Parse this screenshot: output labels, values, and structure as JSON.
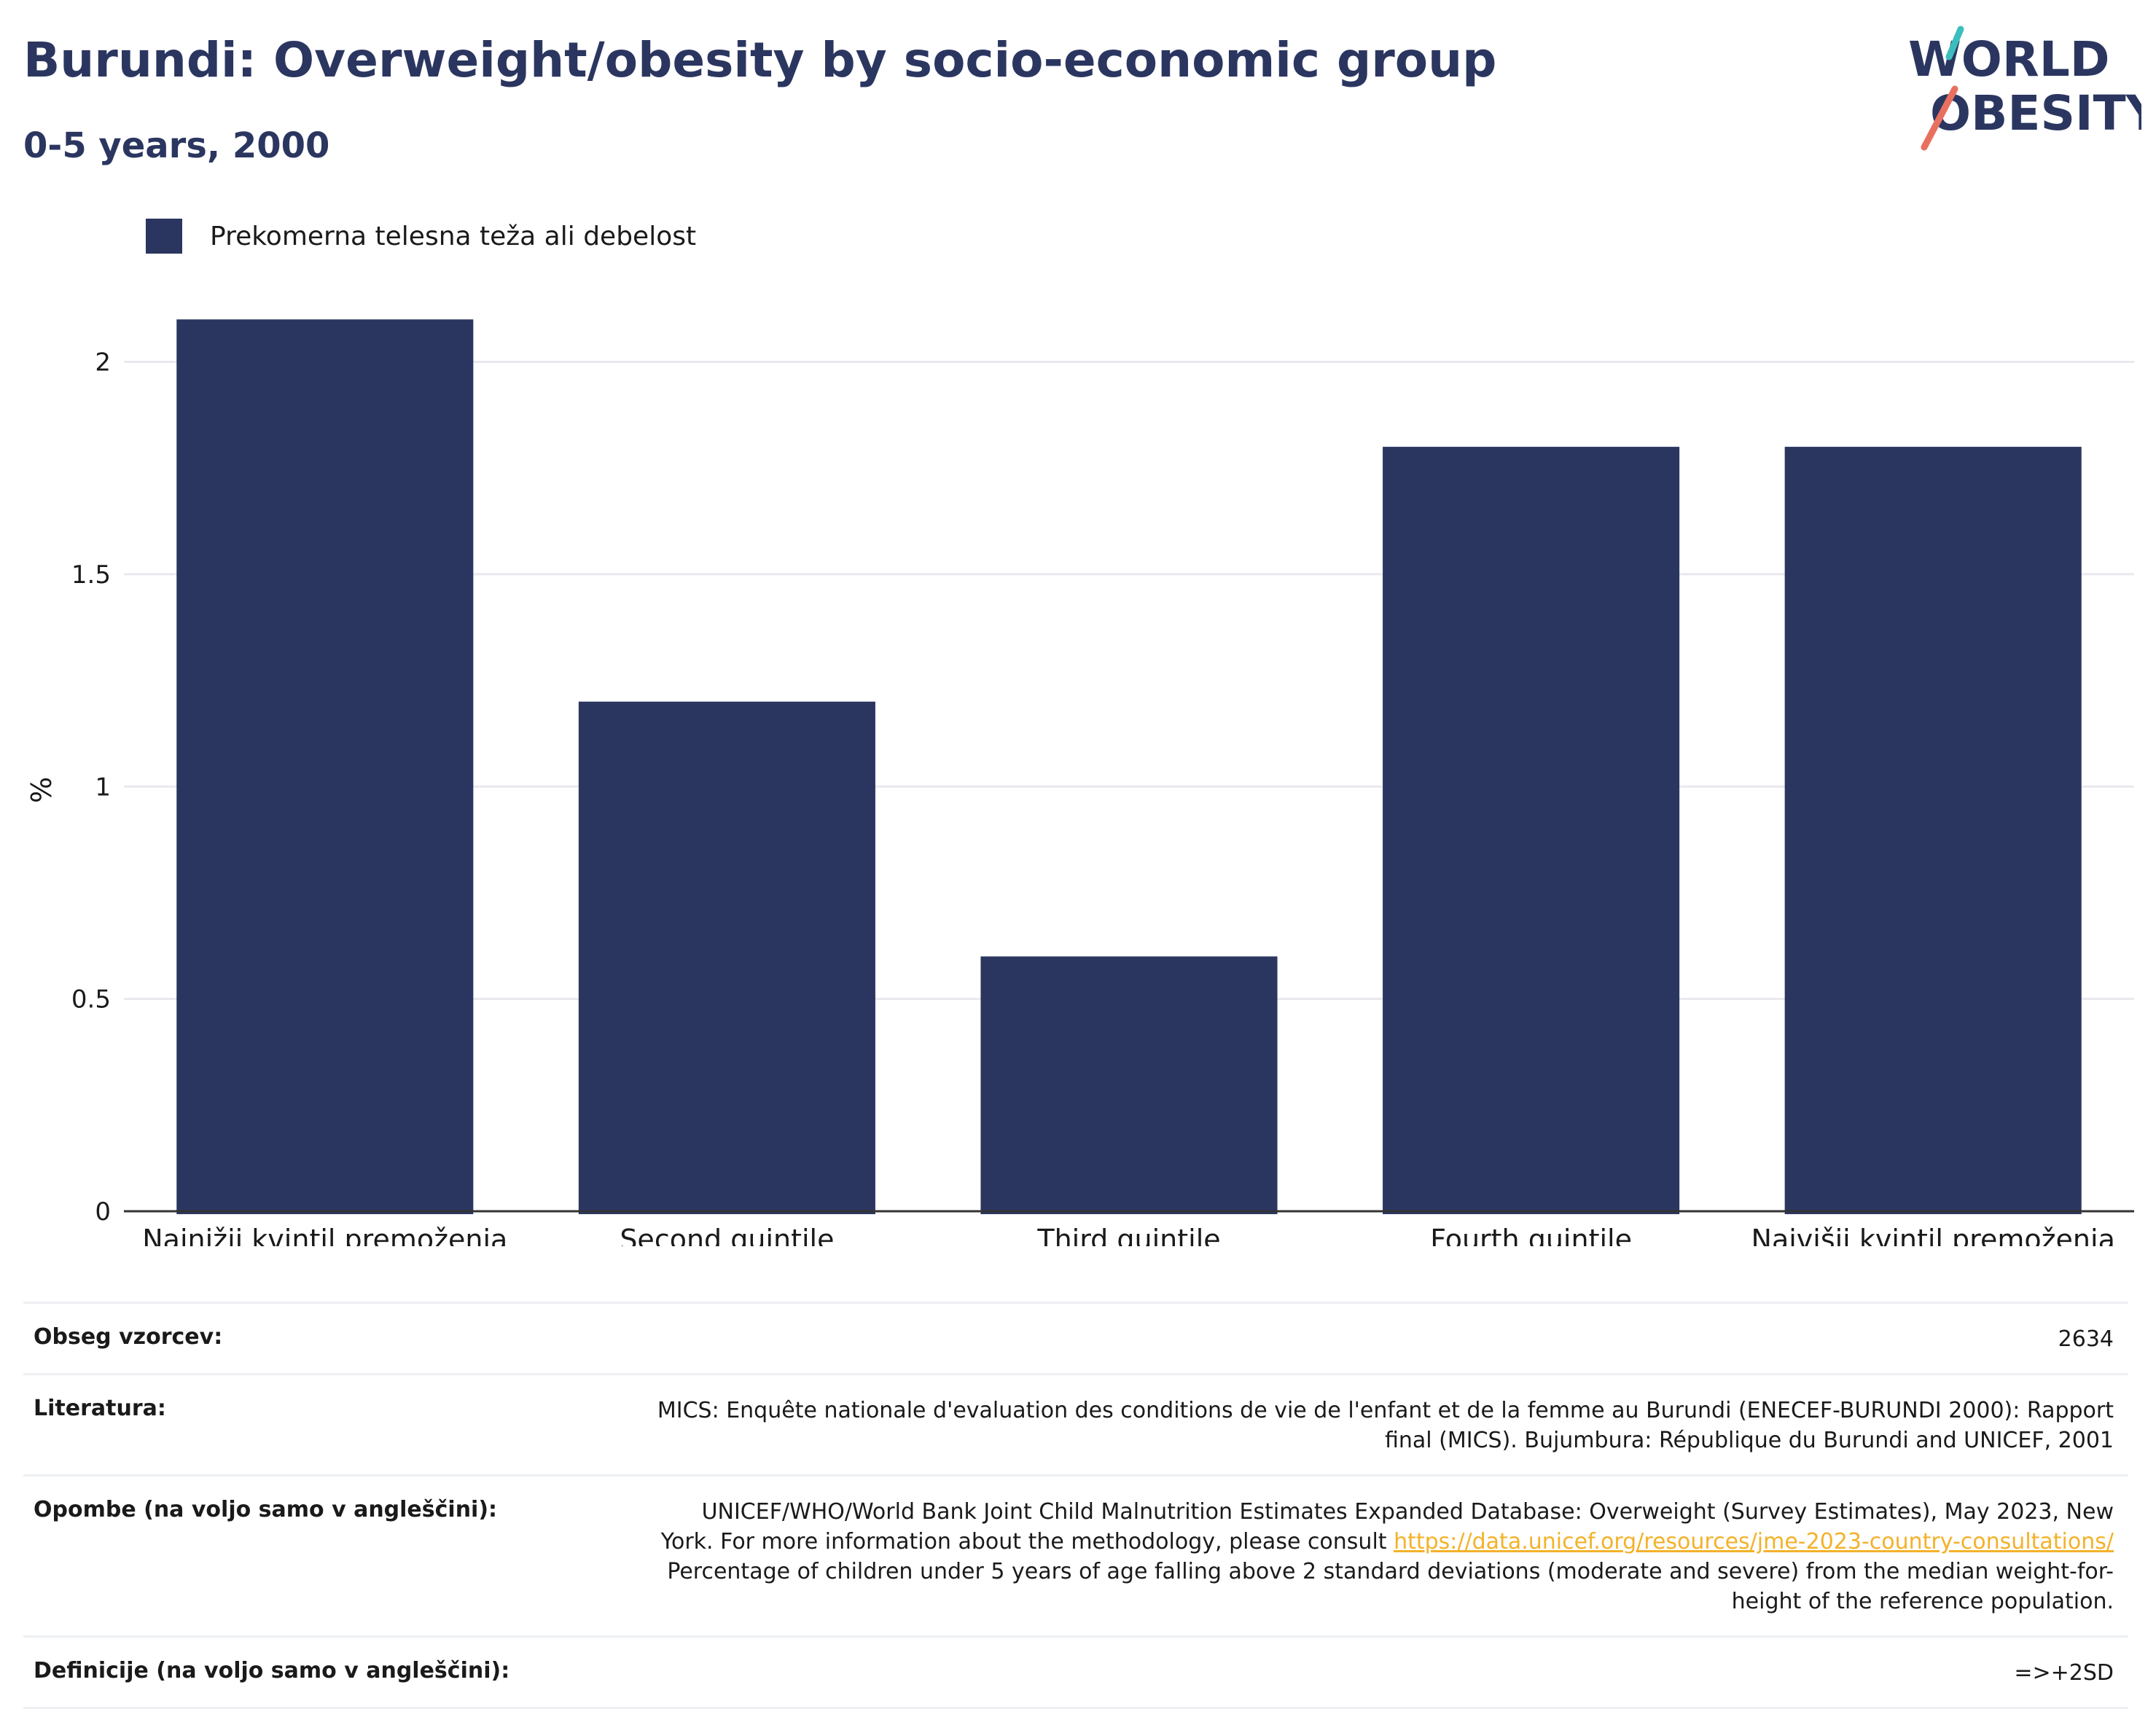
{
  "header": {
    "title": "Burundi: Overweight/obesity by socio-economic group",
    "subtitle": "0-5 years, 2000"
  },
  "logo": {
    "line1": "WORLD",
    "line2": "OBESITY",
    "colors": {
      "text": "#2b3660",
      "teal": "#3dbdbd",
      "coral": "#e8705f"
    }
  },
  "colors": {
    "bar": "#2b3660",
    "grid": "#e7e9ee",
    "axis": "#333333",
    "link": "#f3b22a"
  },
  "chart_data": {
    "type": "bar",
    "categories": [
      "Najnižji kvintil premoženja",
      "Second quintile",
      "Third quintile",
      "Fourth quintile",
      "Najvišji kvintil premoženja"
    ],
    "series": [
      {
        "name": "Prekomerna telesna teža ali debelost",
        "values": [
          2.1,
          1.2,
          0.6,
          1.8,
          1.8
        ]
      }
    ],
    "ylabel": "%",
    "ylim": [
      0,
      2.2
    ],
    "yticks": [
      0,
      0.5,
      1,
      1.5,
      2
    ],
    "ytick_labels": [
      "0",
      "0.5",
      "1",
      "1.5",
      "2"
    ],
    "grid": true,
    "legend_position": "top-left"
  },
  "info": {
    "rows": [
      {
        "key": "Obseg vzorcev:",
        "lines": [
          "2634"
        ]
      },
      {
        "key": "Literatura:",
        "lines": [
          "MICS: Enquête nationale d'evaluation des conditions de vie de l'enfant et de la femme au Burundi (ENECEF-BURUNDI 2000): Rapport",
          "final (MICS). Bujumbura: République du Burundi and UNICEF, 2001"
        ]
      },
      {
        "key": "Opombe (na voljo samo v angleščini):",
        "lines": [
          "UNICEF/WHO/World Bank Joint Child Malnutrition Estimates Expanded Database: Overweight (Survey Estimates), May 2023, New",
          "York. For more information about the methodology, please consult ",
          "Percentage of children under 5 years of age falling above 2 standard deviations (moderate and severe) from the median weight-for-",
          "height of the reference population."
        ],
        "link": "https://data.unicef.org/resources/jme-2023-country-consultations/"
      },
      {
        "key": "Definicije (na voljo samo v angleščini):",
        "lines": [
          "=>+2SD"
        ]
      }
    ]
  }
}
